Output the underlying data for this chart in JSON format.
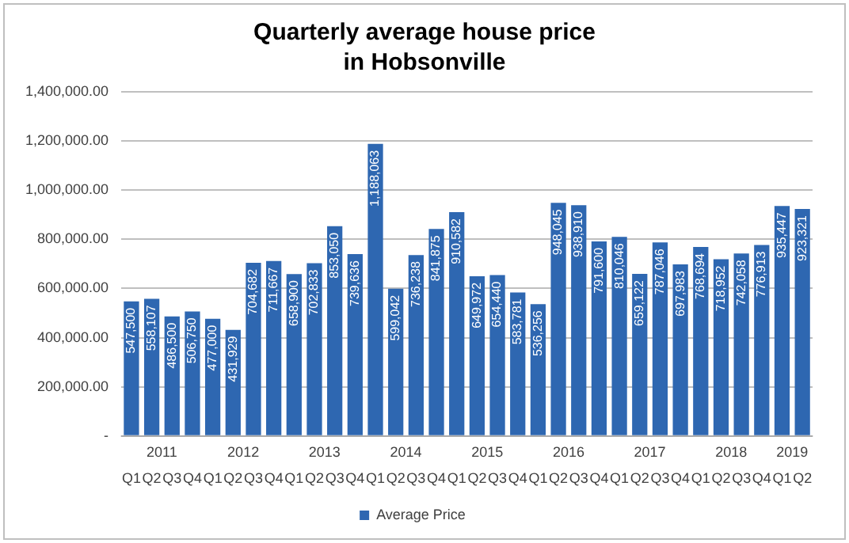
{
  "chart_data": {
    "type": "bar",
    "title": "Quarterly average house price in Hobsonville",
    "categories": [
      "Q1",
      "Q2",
      "Q3",
      "Q4",
      "Q1",
      "Q2",
      "Q3",
      "Q4",
      "Q1",
      "Q2",
      "Q3",
      "Q4",
      "Q1",
      "Q2",
      "Q3",
      "Q4",
      "Q1",
      "Q2",
      "Q3",
      "Q4",
      "Q1",
      "Q2",
      "Q3",
      "Q4",
      "Q1",
      "Q2",
      "Q3",
      "Q4",
      "Q1",
      "Q2",
      "Q3",
      "Q4",
      "Q1",
      "Q2"
    ],
    "annotations": [
      "2011",
      "2012",
      "2013",
      "2014",
      "2015",
      "2016",
      "2017",
      "2018",
      "2019"
    ],
    "series": [
      {
        "name": "Average Price",
        "color": "#2e67b1",
        "values": [
          547500,
          558107,
          486500,
          506750,
          477000,
          431929,
          704682,
          711667,
          658900,
          702833,
          853050,
          739636,
          1188063,
          599042,
          736238,
          841875,
          910582,
          649972,
          654440,
          583781,
          536256,
          948045,
          938910,
          791600,
          810046,
          659122,
          787046,
          697983,
          768694,
          718952,
          742058,
          776913,
          935447,
          923321
        ],
        "value_labels": [
          "547,500",
          "558,107",
          "486,500",
          "506,750",
          "477,000",
          "431,929",
          "704,682",
          "711,667",
          "658,900",
          "702,833",
          "853,050",
          "739,636",
          "1,188,063",
          "599,042",
          "736,238",
          "841,875",
          "910,582",
          "649,972",
          "654,440",
          "583,781",
          "536,256",
          "948,045",
          "938,910",
          "791,600",
          "810,046",
          "659,122",
          "787,046",
          "697,983",
          "768,694",
          "718,952",
          "742,058",
          "776,913",
          "935,447",
          "923,321"
        ]
      }
    ],
    "ylim": [
      0,
      1400000
    ],
    "yticks": [
      {
        "value": 0,
        "label": "-"
      },
      {
        "value": 200000,
        "label": "200,000.00"
      },
      {
        "value": 400000,
        "label": "400,000.00"
      },
      {
        "value": 600000,
        "label": "600,000.00"
      },
      {
        "value": 800000,
        "label": "800,000.00"
      },
      {
        "value": 1000000,
        "label": "1,000,000.00"
      },
      {
        "value": 1200000,
        "label": "1,200,000.00"
      },
      {
        "value": 1400000,
        "label": "1,400,000.00"
      }
    ],
    "grid": "y",
    "legend": "bottom"
  }
}
